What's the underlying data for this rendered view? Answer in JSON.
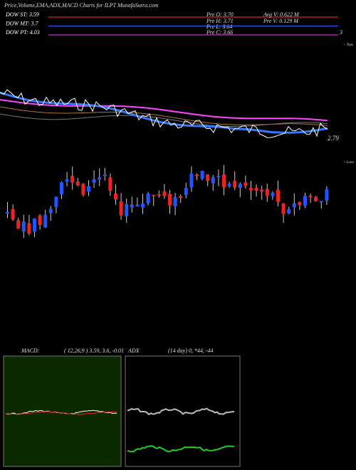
{
  "header": {
    "title": "Price,Volume,EMA,ADX,MACD Charts for ILPT MunafaSutra.com"
  },
  "levels": [
    {
      "label": "DOW ST: 3.59",
      "color": "#ff3333"
    },
    {
      "label": "DOW MT: 3.7",
      "color": "#3366ff"
    },
    {
      "label": "DOW PT: 4.03",
      "color": "#ff33ff"
    }
  ],
  "stats": [
    "Pre O: 3.70",
    "Avg V: 0.622 M",
    "Pre H: 3.71",
    "Pre V: 0.129 M",
    "Pre L: 3.64",
    "Pre C: 3.66"
  ],
  "axis": {
    "top": "3",
    "bottom": "2.79",
    "tops": "< Tops",
    "lows": "< Lows"
  },
  "macd": {
    "name": "MACD:",
    "params": "( 12,26,9 ) 3.59, 3.6, -0.01"
  },
  "adx": {
    "name": "ADX",
    "params": "(14 day) 0, *44, -44"
  }
}
